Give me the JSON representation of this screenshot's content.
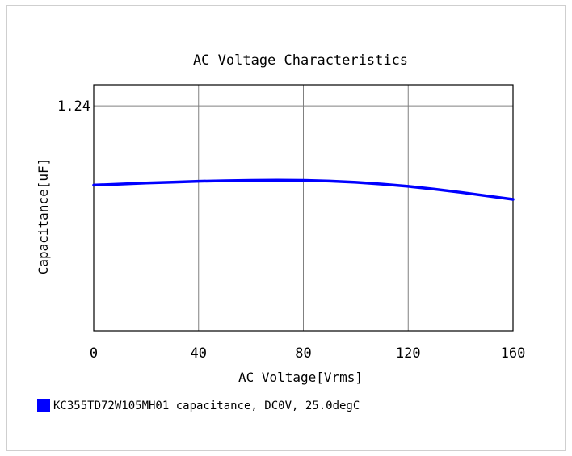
{
  "chart_data": {
    "type": "line",
    "title": "AC Voltage Characteristics",
    "xlabel": "AC Voltage[Vrms]",
    "ylabel": "Capacitance[uF]",
    "xlim": [
      0,
      160
    ],
    "xticks": [
      "0",
      "40",
      "80",
      "120",
      "160"
    ],
    "ylim": [
      0.6,
      1.3
    ],
    "yticks": [
      "1.24"
    ],
    "grid": true,
    "legend_position": "bottom-left",
    "series": [
      {
        "name": "KC355TD72W105MH01 capacitance, DC0V, 25.0degC",
        "color": "#0000ff",
        "x": [
          0,
          10,
          20,
          30,
          40,
          50,
          60,
          70,
          80,
          90,
          100,
          110,
          120,
          130,
          140,
          150,
          160
        ],
        "y": [
          1.0145,
          1.0175,
          1.0205,
          1.023,
          1.0255,
          1.027,
          1.028,
          1.0285,
          1.028,
          1.026,
          1.0225,
          1.0175,
          1.011,
          1.003,
          0.994,
          0.984,
          0.974
        ]
      }
    ]
  }
}
